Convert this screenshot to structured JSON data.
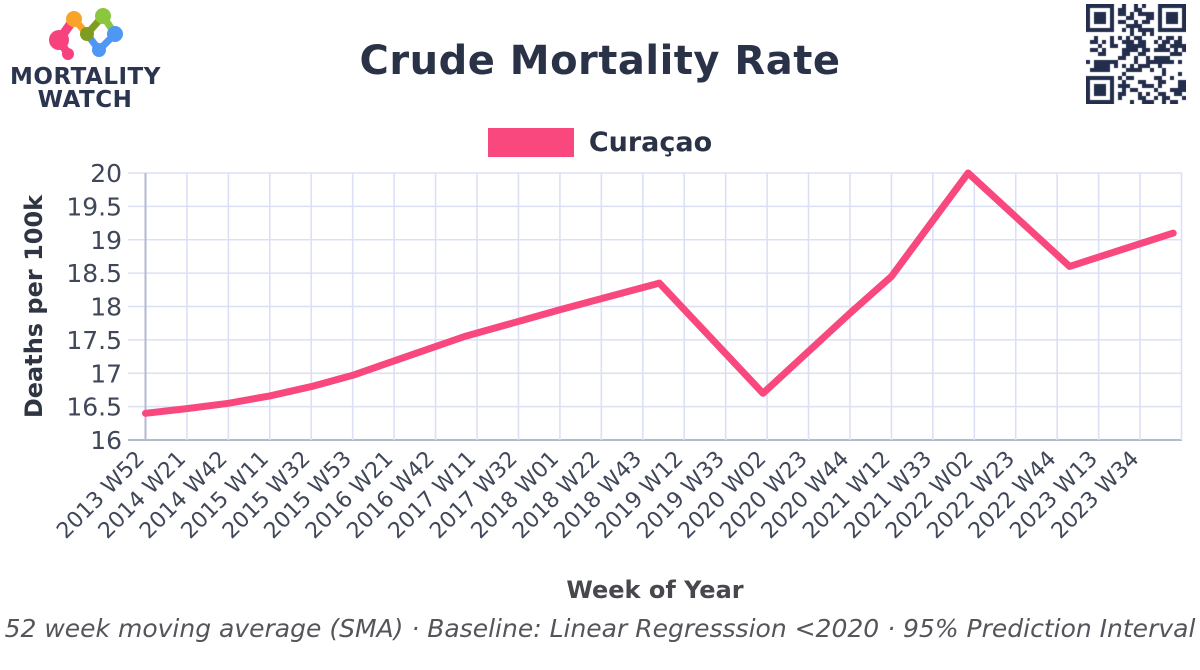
{
  "header": {
    "logo_line1": "MORTALITY",
    "logo_line2": "WATCH",
    "title": "Crude Mortality Rate"
  },
  "legend": {
    "series_label": "Curaçao",
    "swatch_color": "#F8487E"
  },
  "chart_data": {
    "type": "line",
    "title": "Crude Mortality Rate",
    "series_name": "Curaçao",
    "xlabel": "Week of Year",
    "ylabel": "Deaths per 100k",
    "ylim": [
      16,
      20
    ],
    "yticks": [
      16,
      16.5,
      17,
      17.5,
      18,
      18.5,
      19,
      19.5,
      20
    ],
    "grid": true,
    "legend_position": "top-center",
    "line_color": "#F8487E",
    "x_tick_labels": [
      "2013 W52",
      "2014 W21",
      "2014 W42",
      "2015 W11",
      "2015 W32",
      "2015 W53",
      "2016 W21",
      "2016 W42",
      "2017 W11",
      "2017 W32",
      "2018 W01",
      "2018 W22",
      "2018 W43",
      "2019 W12",
      "2019 W33",
      "2020 W02",
      "2020 W23",
      "2020 W44",
      "2021 W12",
      "2021 W33",
      "2022 W02",
      "2022 W23",
      "2022 W44",
      "2023 W13",
      "2023 W34"
    ],
    "points_note": "x in tick-index units (1 tick = 21 weeks), y = deaths per 100k (52-week SMA)",
    "points": [
      [
        0,
        16.4
      ],
      [
        1,
        16.47
      ],
      [
        2,
        16.55
      ],
      [
        3,
        16.66
      ],
      [
        4,
        16.8
      ],
      [
        5,
        16.97
      ],
      [
        6.3,
        17.25
      ],
      [
        7.7,
        17.55
      ],
      [
        10,
        17.95
      ],
      [
        12.4,
        18.35
      ],
      [
        14.9,
        16.7
      ],
      [
        17,
        17.9
      ],
      [
        18,
        18.45
      ],
      [
        19.85,
        20.0
      ],
      [
        22.3,
        18.6
      ],
      [
        24.8,
        19.1
      ]
    ]
  },
  "footer": {
    "note": "52 week moving average (SMA) · Baseline: Linear Regresssion <2020 · 95% Prediction Interval"
  }
}
